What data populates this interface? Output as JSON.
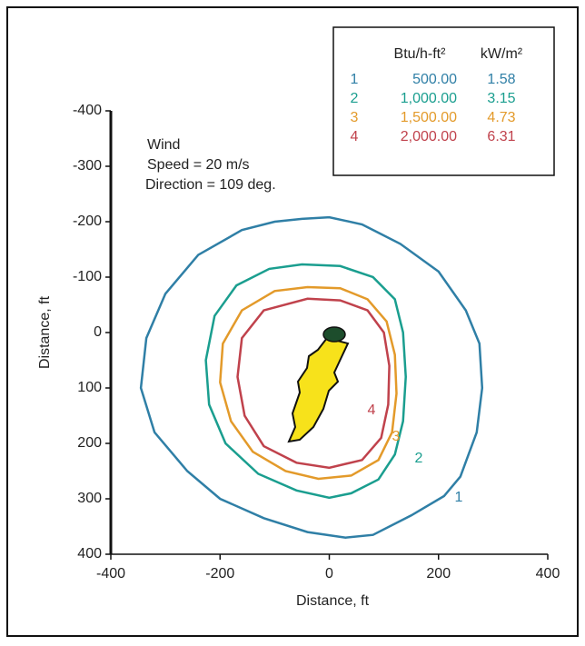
{
  "chart_data": {
    "type": "contour",
    "xlabel": "Distance, ft",
    "ylabel": "Distance, ft",
    "xlim": [
      -400,
      400
    ],
    "xticks": [
      -400,
      -200,
      0,
      200,
      400
    ],
    "ylim": [
      -400,
      400
    ],
    "yticks": [
      -400,
      -300,
      -200,
      -100,
      0,
      100,
      200,
      300,
      400
    ],
    "y_inverted": true,
    "annotation": [
      "Wind",
      "Speed = 20 m/s",
      "Direction = 109 deg."
    ],
    "legend_headers": [
      "Btu/h-ft²",
      "kW/m²"
    ],
    "series": [
      {
        "name": "1",
        "btu": "500.00",
        "kw": 1.58,
        "color": "#2f7fa6",
        "x": [
          -50,
          0,
          60,
          130,
          200,
          250,
          275,
          280,
          270,
          240,
          210,
          150,
          80,
          30,
          -40,
          -120,
          -200,
          -260,
          -320,
          -345,
          -335,
          -300,
          -240,
          -160,
          -100
        ],
        "y": [
          -205,
          -208,
          -195,
          -160,
          -110,
          -40,
          20,
          100,
          180,
          260,
          295,
          330,
          365,
          370,
          360,
          335,
          300,
          250,
          180,
          100,
          10,
          -70,
          -140,
          -185,
          -200
        ]
      },
      {
        "name": "2",
        "btu": "1,000.00",
        "kw": 3.15,
        "color": "#1a9e8f",
        "x": [
          -50,
          20,
          80,
          120,
          135,
          140,
          135,
          120,
          90,
          40,
          0,
          -60,
          -130,
          -190,
          -220,
          -226,
          -210,
          -170,
          -110
        ],
        "y": [
          -123,
          -120,
          -100,
          -60,
          0,
          80,
          160,
          220,
          265,
          290,
          298,
          285,
          255,
          200,
          130,
          50,
          -30,
          -85,
          -115
        ]
      },
      {
        "name": "3",
        "btu": "1,500.00",
        "kw": 4.73,
        "color": "#e39a2a",
        "x": [
          -40,
          20,
          70,
          105,
          120,
          123,
          115,
          90,
          40,
          -20,
          -80,
          -140,
          -180,
          -200,
          -195,
          -160,
          -100
        ],
        "y": [
          -82,
          -80,
          -60,
          -20,
          40,
          110,
          180,
          230,
          258,
          264,
          250,
          215,
          160,
          90,
          20,
          -40,
          -75
        ]
      },
      {
        "name": "4",
        "btu": "2,000.00",
        "kw": 6.31,
        "color": "#c0424c",
        "x": [
          -40,
          20,
          70,
          100,
          110,
          108,
          95,
          60,
          0,
          -60,
          -120,
          -155,
          -168,
          -160,
          -120
        ],
        "y": [
          -61,
          -58,
          -40,
          0,
          60,
          130,
          190,
          230,
          244,
          235,
          205,
          150,
          80,
          10,
          -40
        ]
      }
    ]
  }
}
